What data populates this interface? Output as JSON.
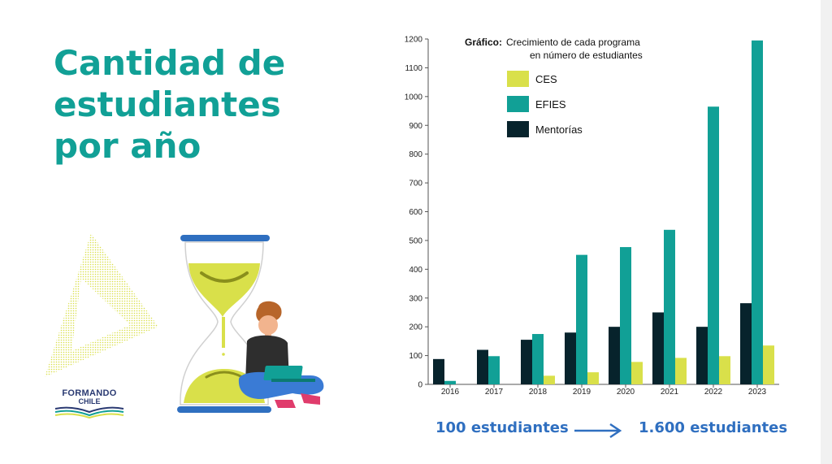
{
  "title": "Cantidad de\nestudiantes\npor año",
  "logo": {
    "line1": "FORMANDO",
    "line2": "CHILE"
  },
  "summary": {
    "from": "100 estudiantes",
    "to": "1.600 estudiantes"
  },
  "colors": {
    "title": "#11a096",
    "ces": "#d9e04a",
    "efies": "#11a096",
    "mentorias": "#07232c",
    "summary": "#2f6fc0"
  },
  "chart_data": {
    "type": "bar",
    "title_bold": "Gráfico:",
    "title_line1": "Crecimiento de cada programa",
    "title_line2": "en número de estudiantes",
    "categories": [
      "2016",
      "2017",
      "2018",
      "2019",
      "2020",
      "2021",
      "2022",
      "2023"
    ],
    "series": [
      {
        "name": "Mentorías",
        "color": "#07232c",
        "values": [
          88,
          120,
          155,
          180,
          200,
          250,
          200,
          282
        ]
      },
      {
        "name": "EFIES",
        "color": "#11a096",
        "values": [
          12,
          98,
          175,
          450,
          477,
          537,
          965,
          1195
        ]
      },
      {
        "name": "CES",
        "color": "#d9e04a",
        "values": [
          0,
          0,
          30,
          42,
          78,
          92,
          98,
          135
        ]
      }
    ],
    "legend_order": [
      "CES",
      "EFIES",
      "Mentorías"
    ],
    "ylim": [
      0,
      1200
    ],
    "yticks": [
      0,
      100,
      200,
      300,
      400,
      500,
      600,
      700,
      800,
      900,
      1000,
      1100,
      1200
    ],
    "grid": false,
    "legend_position": "top-left"
  }
}
